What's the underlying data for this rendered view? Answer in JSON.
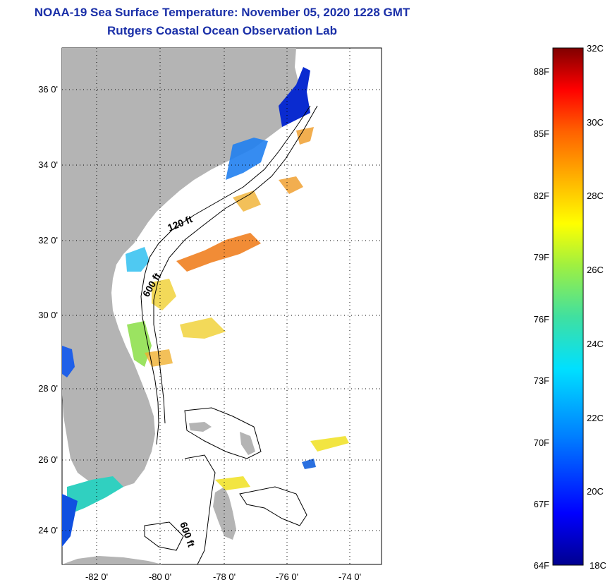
{
  "header": {
    "title": "NOAA-19 Sea Surface Temperature:  November 05, 2020 1228 GMT",
    "subtitle": "Rutgers Coastal Ocean Observation Lab"
  },
  "axes": {
    "lat_labels": [
      "36 0'",
      "34 0'",
      "32 0'",
      "30 0'",
      "28 0'",
      "26 0'",
      "24 0'"
    ],
    "lon_labels": [
      "-82 0'",
      "-80 0'",
      "-78 0'",
      "-76 0'",
      "-74 0'"
    ]
  },
  "contours": {
    "shelf_120": "120 ft",
    "slope_600_north": "600 ft",
    "slope_600_south": "600 ft"
  },
  "colorbar": {
    "fahrenheit": [
      "88F",
      "85F",
      "82F",
      "79F",
      "76F",
      "73F",
      "70F",
      "67F",
      "64F"
    ],
    "celsius": [
      "32C",
      "30C",
      "28C",
      "26C",
      "24C",
      "22C",
      "20C",
      "18C"
    ],
    "gradient": [
      "#00008f",
      "#0000ff",
      "#0080ff",
      "#00e0ff",
      "#40e0a0",
      "#a0f040",
      "#ffff00",
      "#ffb000",
      "#ff6000",
      "#ff0000",
      "#a00000",
      "#800000"
    ]
  },
  "colors": {
    "land": "#b4b4b4",
    "title": "#1a2fa8",
    "ocean": "#ffffff"
  }
}
